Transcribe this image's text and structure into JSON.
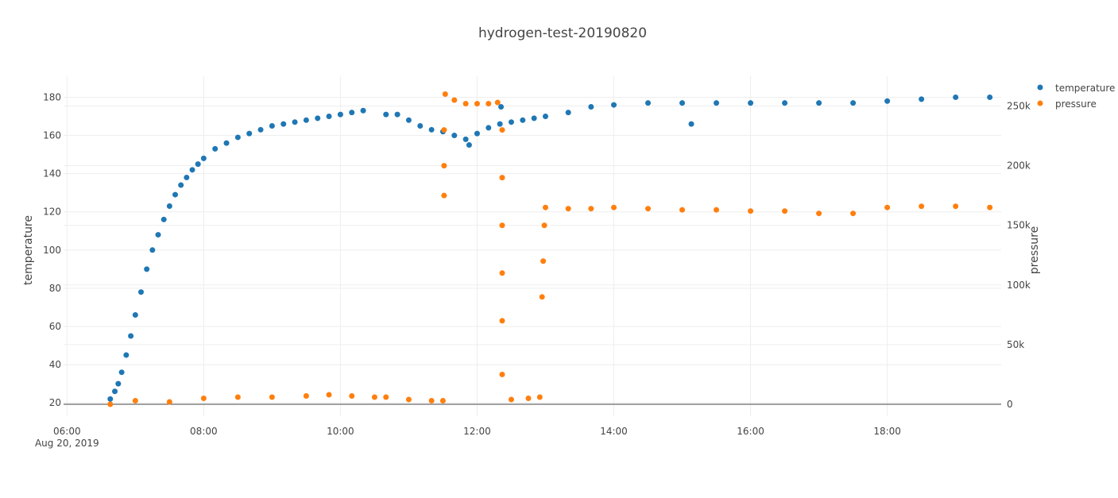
{
  "chart_data": {
    "type": "scatter",
    "title": "hydrogen-test-20190820",
    "xlabel": "",
    "ylabel": "temperature",
    "y2label": "pressure",
    "x_range": [
      "2019-08-20T05:57",
      "2019-08-20T19:40"
    ],
    "y_range": [
      13,
      191
    ],
    "y2_range": [
      -10000,
      275000
    ],
    "x_ticks": [
      {
        "t": "2019-08-20T06:00",
        "label": "06:00",
        "sublabel": "Aug 20, 2019"
      },
      {
        "t": "2019-08-20T08:00",
        "label": "08:00"
      },
      {
        "t": "2019-08-20T10:00",
        "label": "10:00"
      },
      {
        "t": "2019-08-20T12:00",
        "label": "12:00"
      },
      {
        "t": "2019-08-20T14:00",
        "label": "14:00"
      },
      {
        "t": "2019-08-20T16:00",
        "label": "16:00"
      },
      {
        "t": "2019-08-20T18:00",
        "label": "18:00"
      }
    ],
    "y_ticks": [
      20,
      40,
      60,
      80,
      100,
      120,
      140,
      160,
      180
    ],
    "y2_ticks": [
      {
        "v": 0,
        "label": "0"
      },
      {
        "v": 50000,
        "label": "50k"
      },
      {
        "v": 100000,
        "label": "100k"
      },
      {
        "v": 150000,
        "label": "150k"
      },
      {
        "v": 200000,
        "label": "200k"
      },
      {
        "v": 250000,
        "label": "250k"
      }
    ],
    "grid": true,
    "legend_position": "top-right",
    "series": [
      {
        "name": "temperature",
        "axis": "y",
        "color": "#1f77b4",
        "points": [
          [
            "2019-08-20T06:38",
            22
          ],
          [
            "2019-08-20T06:42",
            26
          ],
          [
            "2019-08-20T06:45",
            30
          ],
          [
            "2019-08-20T06:48",
            36
          ],
          [
            "2019-08-20T06:52",
            45
          ],
          [
            "2019-08-20T06:56",
            55
          ],
          [
            "2019-08-20T07:00",
            66
          ],
          [
            "2019-08-20T07:05",
            78
          ],
          [
            "2019-08-20T07:10",
            90
          ],
          [
            "2019-08-20T07:15",
            100
          ],
          [
            "2019-08-20T07:20",
            108
          ],
          [
            "2019-08-20T07:25",
            116
          ],
          [
            "2019-08-20T07:30",
            123
          ],
          [
            "2019-08-20T07:35",
            129
          ],
          [
            "2019-08-20T07:40",
            134
          ],
          [
            "2019-08-20T07:45",
            138
          ],
          [
            "2019-08-20T07:50",
            142
          ],
          [
            "2019-08-20T07:55",
            145
          ],
          [
            "2019-08-20T08:00",
            148
          ],
          [
            "2019-08-20T08:10",
            153
          ],
          [
            "2019-08-20T08:20",
            156
          ],
          [
            "2019-08-20T08:30",
            159
          ],
          [
            "2019-08-20T08:40",
            161
          ],
          [
            "2019-08-20T08:50",
            163
          ],
          [
            "2019-08-20T09:00",
            165
          ],
          [
            "2019-08-20T09:10",
            166
          ],
          [
            "2019-08-20T09:20",
            167
          ],
          [
            "2019-08-20T09:30",
            168
          ],
          [
            "2019-08-20T09:40",
            169
          ],
          [
            "2019-08-20T09:50",
            170
          ],
          [
            "2019-08-20T10:00",
            171
          ],
          [
            "2019-08-20T10:10",
            172
          ],
          [
            "2019-08-20T10:20",
            173
          ],
          [
            "2019-08-20T10:40",
            171
          ],
          [
            "2019-08-20T10:50",
            171
          ],
          [
            "2019-08-20T11:00",
            168
          ],
          [
            "2019-08-20T11:10",
            165
          ],
          [
            "2019-08-20T11:20",
            163
          ],
          [
            "2019-08-20T11:30",
            162
          ],
          [
            "2019-08-20T11:40",
            160
          ],
          [
            "2019-08-20T11:50",
            158
          ],
          [
            "2019-08-20T12:00",
            161
          ],
          [
            "2019-08-20T12:10",
            164
          ],
          [
            "2019-08-20T12:20",
            166
          ],
          [
            "2019-08-20T12:30",
            167
          ],
          [
            "2019-08-20T12:40",
            168
          ],
          [
            "2019-08-20T12:50",
            169
          ],
          [
            "2019-08-20T13:00",
            170
          ],
          [
            "2019-08-20T13:20",
            172
          ],
          [
            "2019-08-20T13:40",
            175
          ],
          [
            "2019-08-20T14:00",
            176
          ],
          [
            "2019-08-20T14:30",
            177
          ],
          [
            "2019-08-20T15:00",
            177
          ],
          [
            "2019-08-20T15:30",
            177
          ],
          [
            "2019-08-20T16:00",
            177
          ],
          [
            "2019-08-20T16:30",
            177
          ],
          [
            "2019-08-20T17:00",
            177
          ],
          [
            "2019-08-20T17:30",
            177
          ],
          [
            "2019-08-20T18:00",
            178
          ],
          [
            "2019-08-20T18:30",
            179
          ],
          [
            "2019-08-20T19:00",
            180
          ],
          [
            "2019-08-20T19:30",
            180
          ],
          [
            "2019-08-20T11:53",
            155
          ],
          [
            "2019-08-20T15:08",
            166
          ],
          [
            "2019-08-20T12:21",
            175
          ]
        ]
      },
      {
        "name": "pressure",
        "axis": "y2",
        "color": "#ff7f0e",
        "points": [
          [
            "2019-08-20T06:38",
            0
          ],
          [
            "2019-08-20T07:00",
            3000
          ],
          [
            "2019-08-20T07:30",
            2000
          ],
          [
            "2019-08-20T08:00",
            5000
          ],
          [
            "2019-08-20T08:30",
            6000
          ],
          [
            "2019-08-20T09:00",
            6000
          ],
          [
            "2019-08-20T09:30",
            7000
          ],
          [
            "2019-08-20T09:50",
            8000
          ],
          [
            "2019-08-20T10:10",
            7000
          ],
          [
            "2019-08-20T10:30",
            6000
          ],
          [
            "2019-08-20T10:40",
            6000
          ],
          [
            "2019-08-20T11:00",
            4000
          ],
          [
            "2019-08-20T11:20",
            3000
          ],
          [
            "2019-08-20T11:30",
            3000
          ],
          [
            "2019-08-20T11:32",
            260000
          ],
          [
            "2019-08-20T11:40",
            255000
          ],
          [
            "2019-08-20T11:50",
            252000
          ],
          [
            "2019-08-20T12:00",
            252000
          ],
          [
            "2019-08-20T12:10",
            252000
          ],
          [
            "2019-08-20T12:18",
            253000
          ],
          [
            "2019-08-20T11:31",
            230000
          ],
          [
            "2019-08-20T11:31",
            200000
          ],
          [
            "2019-08-20T11:31",
            175000
          ],
          [
            "2019-08-20T12:22",
            230000
          ],
          [
            "2019-08-20T12:22",
            190000
          ],
          [
            "2019-08-20T12:22",
            150000
          ],
          [
            "2019-08-20T12:22",
            110000
          ],
          [
            "2019-08-20T12:22",
            70000
          ],
          [
            "2019-08-20T12:22",
            25000
          ],
          [
            "2019-08-20T12:30",
            4000
          ],
          [
            "2019-08-20T12:45",
            5000
          ],
          [
            "2019-08-20T12:55",
            6000
          ],
          [
            "2019-08-20T12:57",
            90000
          ],
          [
            "2019-08-20T12:58",
            120000
          ],
          [
            "2019-08-20T12:59",
            150000
          ],
          [
            "2019-08-20T13:00",
            165000
          ],
          [
            "2019-08-20T13:20",
            164000
          ],
          [
            "2019-08-20T13:40",
            164000
          ],
          [
            "2019-08-20T14:00",
            165000
          ],
          [
            "2019-08-20T14:30",
            164000
          ],
          [
            "2019-08-20T15:00",
            163000
          ],
          [
            "2019-08-20T15:30",
            163000
          ],
          [
            "2019-08-20T16:00",
            162000
          ],
          [
            "2019-08-20T16:30",
            162000
          ],
          [
            "2019-08-20T17:00",
            160000
          ],
          [
            "2019-08-20T17:30",
            160000
          ],
          [
            "2019-08-20T18:00",
            165000
          ],
          [
            "2019-08-20T18:30",
            166000
          ],
          [
            "2019-08-20T19:00",
            166000
          ],
          [
            "2019-08-20T19:30",
            165000
          ]
        ]
      }
    ]
  }
}
